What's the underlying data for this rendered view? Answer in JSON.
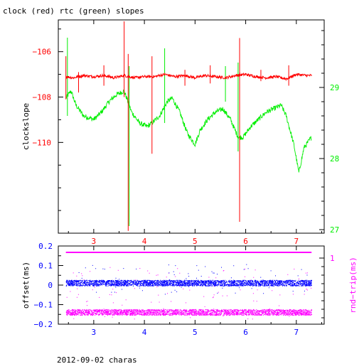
{
  "title": "clock (red) rtc (green) slopes",
  "footer": "2012-09-02 charas",
  "colors": {
    "clock": "#ff0000",
    "rtc": "#00ee00",
    "offset": "#0000ff",
    "rndtrip": "#ff00ff",
    "axes": "#000000"
  },
  "chart_data": [
    {
      "type": "line",
      "title": "clock (red) rtc (green) slopes",
      "xlabel": "",
      "ylabel": "clockslope",
      "xlim": [
        2.3,
        7.55
      ],
      "ylim": [
        -114,
        -104.6
      ],
      "ylim_right": [
        26.95,
        29.95
      ],
      "x_ticks": [
        3,
        4,
        5,
        6,
        7
      ],
      "y_ticks": [
        -106,
        -108,
        -110
      ],
      "y_tick_labels": [
        "−106",
        "−108",
        "−110"
      ],
      "y_right_ticks": [
        29,
        28,
        27
      ],
      "grid": false,
      "series": [
        {
          "name": "clock",
          "axis": "left",
          "color": "#ff0000",
          "x": [
            2.45,
            2.6,
            2.8,
            3.0,
            3.2,
            3.4,
            3.6,
            3.8,
            4.0,
            4.2,
            4.4,
            4.6,
            4.8,
            5.0,
            5.2,
            5.4,
            5.6,
            5.8,
            6.0,
            6.2,
            6.4,
            6.6,
            6.8,
            7.0,
            7.2,
            7.3
          ],
          "y": [
            -107.1,
            -107.15,
            -107.05,
            -107.1,
            -107.05,
            -107.15,
            -107.05,
            -107.15,
            -107.1,
            -107.1,
            -107.0,
            -107.1,
            -107.05,
            -107.15,
            -107.05,
            -107.1,
            -107.15,
            -107.05,
            -107.0,
            -107.1,
            -107.15,
            -107.1,
            -107.2,
            -107.0,
            -107.05,
            -107.05
          ],
          "spikes": [
            {
              "x": 2.45,
              "y1": -106.2,
              "y2": -108.1
            },
            {
              "x": 2.7,
              "y1": -106.9,
              "y2": -107.8
            },
            {
              "x": 3.2,
              "y1": -106.6,
              "y2": -107.5
            },
            {
              "x": 3.6,
              "y1": -104.3,
              "y2": -108.0
            },
            {
              "x": 3.68,
              "y1": -106.1,
              "y2": -113.9
            },
            {
              "x": 4.15,
              "y1": -106.2,
              "y2": -110.5
            },
            {
              "x": 4.8,
              "y1": -106.8,
              "y2": -107.5
            },
            {
              "x": 5.3,
              "y1": -106.6,
              "y2": -107.4
            },
            {
              "x": 5.88,
              "y1": -105.4,
              "y2": -113.5
            },
            {
              "x": 6.3,
              "y1": -106.8,
              "y2": -107.3
            },
            {
              "x": 6.85,
              "y1": -106.6,
              "y2": -107.5
            }
          ]
        },
        {
          "name": "rtc",
          "axis": "right",
          "color": "#00ee00",
          "x": [
            2.45,
            2.55,
            2.65,
            2.8,
            3.0,
            3.15,
            3.3,
            3.45,
            3.6,
            3.75,
            3.9,
            4.05,
            4.15,
            4.3,
            4.45,
            4.55,
            4.7,
            4.85,
            5.0,
            5.1,
            5.25,
            5.4,
            5.55,
            5.7,
            5.85,
            5.95,
            6.1,
            6.25,
            6.4,
            6.55,
            6.7,
            6.8,
            6.95,
            7.05,
            7.15,
            7.3
          ],
          "y": [
            28.85,
            28.95,
            28.75,
            28.6,
            28.55,
            28.65,
            28.8,
            28.9,
            28.95,
            28.65,
            28.5,
            28.45,
            28.5,
            28.6,
            28.8,
            28.85,
            28.65,
            28.35,
            28.2,
            28.4,
            28.55,
            28.65,
            28.7,
            28.55,
            28.3,
            28.3,
            28.45,
            28.55,
            28.65,
            28.7,
            28.75,
            28.6,
            28.2,
            27.8,
            28.15,
            28.3
          ],
          "spikes": [
            {
              "x": 2.48,
              "y1": 29.7,
              "y2": 28.6
            },
            {
              "x": 3.7,
              "y1": 29.3,
              "y2": 27.05
            },
            {
              "x": 4.4,
              "y1": 29.55,
              "y2": 28.5
            },
            {
              "x": 5.6,
              "y1": 29.3,
              "y2": 28.8
            },
            {
              "x": 5.85,
              "y1": 29.35,
              "y2": 28.1
            }
          ]
        }
      ]
    },
    {
      "type": "scatter",
      "title": "",
      "xlabel": "",
      "ylabel": "offset(ms)",
      "ylabel_right": "rnd−trip(ms)",
      "xlim": [
        2.3,
        7.55
      ],
      "ylim": [
        -0.2,
        0.2
      ],
      "x_ticks": [
        3,
        4,
        5,
        6,
        7
      ],
      "y_ticks": [
        0.2,
        0.1,
        0,
        -0.1,
        -0.2
      ],
      "y_tick_labels": [
        "0.2",
        "0.1",
        "0",
        "−0.1",
        "−0.2"
      ],
      "y_right_ticks": [
        1
      ],
      "grid": false,
      "series": [
        {
          "name": "offset",
          "axis": "left",
          "color": "#0000ff",
          "x_range": [
            2.45,
            7.3
          ],
          "band_center": 0.01,
          "band_halfwidth": 0.015,
          "outlier_range": [
            -0.05,
            0.11
          ]
        },
        {
          "name": "rnd-trip",
          "axis": "right",
          "color": "#ff00ff",
          "x_range": [
            2.45,
            7.3
          ],
          "line_value": 1,
          "band_center": -0.14,
          "band_halfwidth": 0.015,
          "outlier_range": [
            -0.175,
            0.09
          ]
        }
      ]
    }
  ]
}
